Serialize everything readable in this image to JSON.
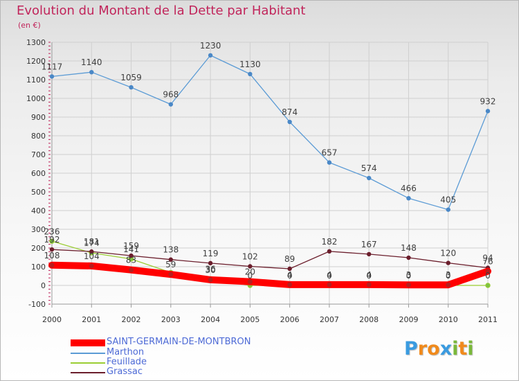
{
  "title": "Evolution du Montant de la Dette par Habitant",
  "subtitle": "(en €)",
  "logo": {
    "letters": [
      "P",
      "r",
      "o",
      "x",
      "i",
      "t",
      "i"
    ],
    "colors": [
      "#3a9be0",
      "#f08a1c",
      "#f08a1c",
      "#3a9be0",
      "#7ab83a",
      "#f08a1c",
      "#7ab83a"
    ]
  },
  "colors": {
    "title": "#c1255b",
    "axis_text": "#333333",
    "grid": "#cfcfcf"
  },
  "chart_data": {
    "type": "line",
    "x": [
      "2000",
      "2001",
      "2002",
      "2003",
      "2004",
      "2005",
      "2006",
      "2007",
      "2008",
      "2009",
      "2010",
      "2011"
    ],
    "ylim": [
      -100,
      1300
    ],
    "yticks": [
      -100,
      0,
      100,
      200,
      300,
      400,
      500,
      600,
      700,
      800,
      900,
      1000,
      1100,
      1200,
      1300
    ],
    "grid": true,
    "legend_position": "bottom-left",
    "series": [
      {
        "name": "SAINT-GERMAIN-DE-MONTBRON",
        "color": "#ff0000",
        "values": [
          108,
          104,
          83,
          59,
          30,
          20,
          4,
          4,
          4,
          3,
          3,
          76
        ],
        "labels": [
          "108",
          "104",
          "83",
          "59",
          "30",
          "20",
          "4",
          "4",
          "4",
          "3",
          "3",
          "76"
        ]
      },
      {
        "name": "Marthon",
        "color": "#5b9bd5",
        "values": [
          1117,
          1140,
          1059,
          968,
          1230,
          1130,
          874,
          657,
          574,
          466,
          405,
          932
        ],
        "labels": [
          "1117",
          "1140",
          "1059",
          "968",
          "1230",
          "1130",
          "874",
          "657",
          "574",
          "466",
          "405",
          "932"
        ]
      },
      {
        "name": "Feuillade",
        "color": "#9acd32",
        "values": [
          236,
          174,
          141,
          69,
          36,
          0,
          0,
          0,
          0,
          0,
          0,
          0
        ],
        "labels": [
          "236",
          "174",
          "141",
          "",
          "36",
          "0",
          "0",
          "0",
          "0",
          "0",
          "0",
          "0"
        ]
      },
      {
        "name": "Grassac",
        "color": "#6b1e2c",
        "values": [
          192,
          181,
          159,
          138,
          119,
          102,
          89,
          182,
          167,
          148,
          120,
          94
        ],
        "labels": [
          "192",
          "181",
          "159",
          "138",
          "119",
          "102",
          "89",
          "182",
          "167",
          "148",
          "120",
          "94"
        ]
      }
    ]
  }
}
